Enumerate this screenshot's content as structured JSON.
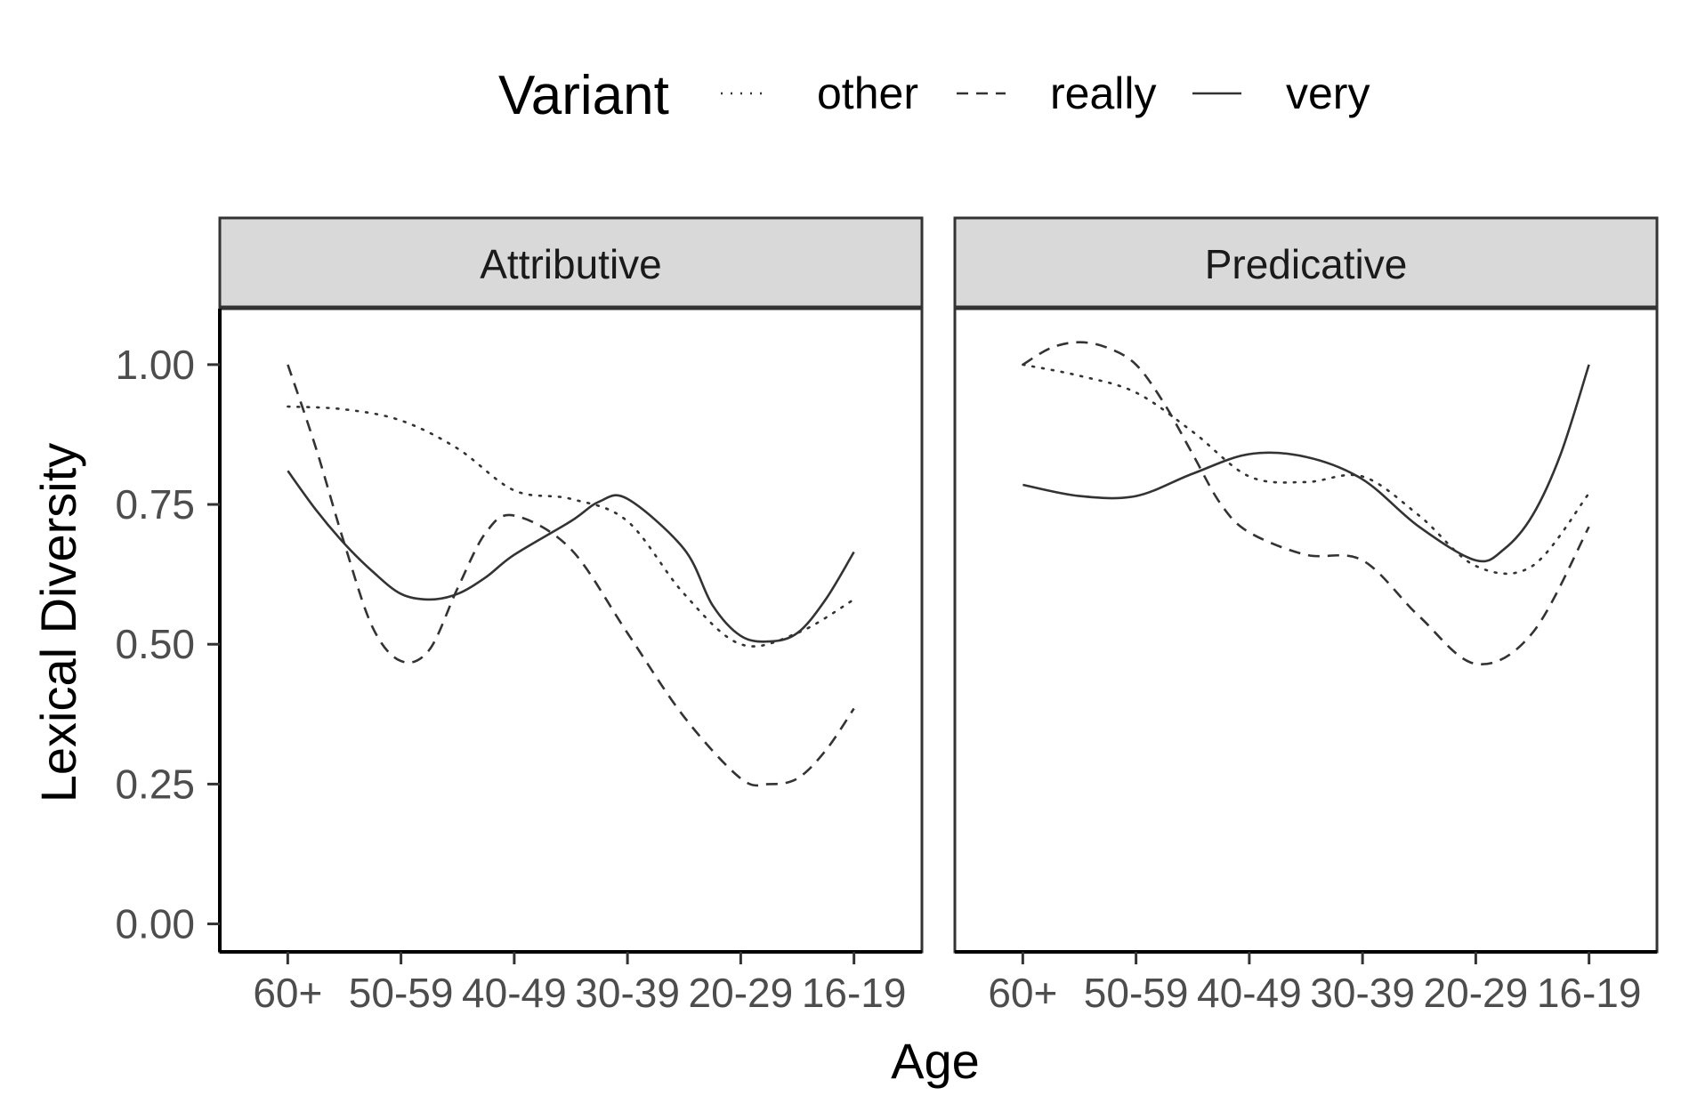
{
  "chart_data": {
    "type": "line",
    "legend": {
      "title": "Variant",
      "position": "top",
      "entries": [
        {
          "name": "other",
          "dash": "dotted"
        },
        {
          "name": "really",
          "dash": "dashed"
        },
        {
          "name": "very",
          "dash": "solid"
        }
      ]
    },
    "xlabel": "Age",
    "ylabel": "Lexical Diversity",
    "categories": [
      "60+",
      "50-59",
      "40-49",
      "30-39",
      "20-29",
      "16-19"
    ],
    "ylim": [
      -0.05,
      1.1
    ],
    "yticks": [
      "0.00",
      "0.25",
      "0.50",
      "0.75",
      "1.00"
    ],
    "ytick_values": [
      0,
      0.25,
      0.5,
      0.75,
      1.0
    ],
    "grid": false,
    "line_color": "#333333",
    "strip_fill": "#d9d9d9",
    "panels": [
      {
        "title": "Attributive",
        "series": [
          {
            "name": "other",
            "dash": "dotted",
            "x": [
              1,
              1.5,
              2,
              2.5,
              3,
              3.5,
              4,
              4.5,
              5,
              5.5,
              6
            ],
            "values": [
              0.925,
              0.92,
              0.9,
              0.85,
              0.775,
              0.76,
              0.72,
              0.59,
              0.5,
              0.52,
              0.58
            ]
          },
          {
            "name": "really",
            "dash": "dashed",
            "x": [
              1,
              1.25,
              1.5,
              1.75,
              2,
              2.25,
              2.5,
              2.75,
              3,
              3.5,
              4,
              4.5,
              5,
              5.25,
              5.5,
              5.75,
              6
            ],
            "values": [
              1.0,
              0.85,
              0.68,
              0.53,
              0.47,
              0.49,
              0.6,
              0.7,
              0.73,
              0.67,
              0.52,
              0.37,
              0.26,
              0.25,
              0.26,
              0.31,
              0.385
            ]
          },
          {
            "name": "very",
            "dash": "solid",
            "x": [
              1,
              1.25,
              1.5,
              1.75,
              2,
              2.25,
              2.5,
              2.75,
              3,
              3.5,
              3.75,
              4,
              4.5,
              4.75,
              5,
              5.25,
              5.5,
              5.75,
              6
            ],
            "values": [
              0.81,
              0.74,
              0.68,
              0.63,
              0.59,
              0.58,
              0.59,
              0.62,
              0.66,
              0.72,
              0.755,
              0.76,
              0.67,
              0.57,
              0.515,
              0.505,
              0.52,
              0.58,
              0.665
            ]
          }
        ]
      },
      {
        "title": "Predicative",
        "series": [
          {
            "name": "other",
            "dash": "dotted",
            "x": [
              1,
              1.5,
              2,
              2.5,
              3,
              3.5,
              4,
              4.5,
              5,
              5.5,
              6
            ],
            "values": [
              1.0,
              0.98,
              0.95,
              0.88,
              0.8,
              0.79,
              0.8,
              0.73,
              0.64,
              0.64,
              0.77
            ]
          },
          {
            "name": "really",
            "dash": "dashed",
            "x": [
              1,
              1.25,
              1.5,
              1.75,
              2,
              2.25,
              2.5,
              2.75,
              3,
              3.5,
              4,
              4.5,
              5,
              5.5,
              6
            ],
            "values": [
              1.0,
              1.03,
              1.04,
              1.03,
              1.0,
              0.93,
              0.84,
              0.75,
              0.7,
              0.66,
              0.65,
              0.55,
              0.465,
              0.52,
              0.71
            ]
          },
          {
            "name": "very",
            "dash": "solid",
            "x": [
              1,
              1.5,
              2,
              2.5,
              3,
              3.5,
              4,
              4.5,
              5,
              5.25,
              5.5,
              5.75,
              6
            ],
            "values": [
              0.785,
              0.765,
              0.765,
              0.805,
              0.84,
              0.835,
              0.795,
              0.71,
              0.65,
              0.67,
              0.73,
              0.84,
              1.0
            ]
          }
        ]
      }
    ]
  }
}
